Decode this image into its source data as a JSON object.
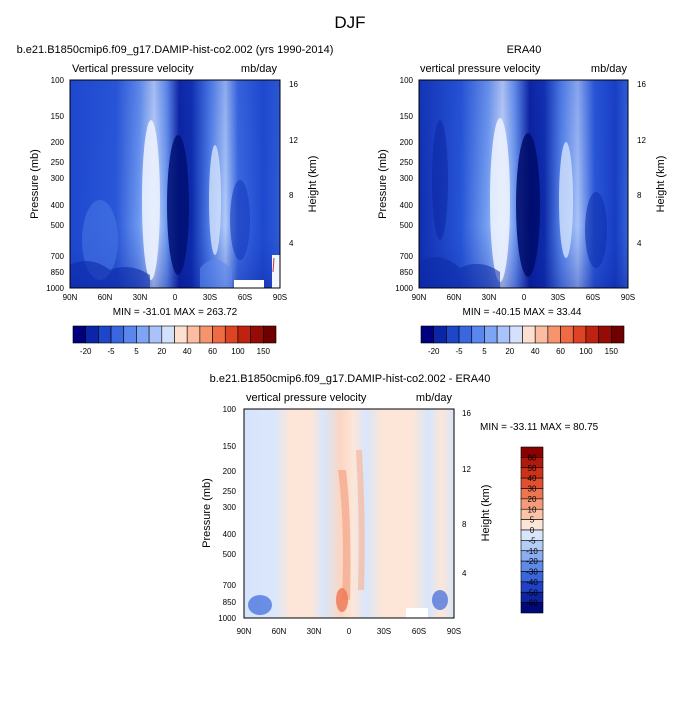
{
  "page_title": "DJF",
  "panels": [
    {
      "title": "b.e21.B1850cmip6.f09_g17.DAMIP-hist-co2.002 (yrs 1990-2014)",
      "left_label": "Vertical pressure velocity",
      "right_label": "mb/day",
      "stats": "MIN = -31.01  MAX = 263.72"
    },
    {
      "title": "ERA40",
      "left_label": "vertical pressure velocity",
      "right_label": "mb/day",
      "stats": "MIN = -40.15  MAX = 33.44"
    },
    {
      "title": "b.e21.B1850cmip6.f09_g17.DAMIP-hist-co2.002 - ERA40",
      "left_label": "vertical pressure velocity",
      "right_label": "mb/day",
      "stats": "MIN = -33.11  MAX =  80.75"
    }
  ],
  "colorbar_main": {
    "tick_labels": [
      "-20",
      "-5",
      "5",
      "20",
      "40",
      "60",
      "100",
      "150"
    ],
    "colors": [
      "#00007f",
      "#0c25a6",
      "#1e46c8",
      "#3a66e0",
      "#5a86ef",
      "#7ea4f6",
      "#a9c3fa",
      "#d3e1fd",
      "#fde0cf",
      "#fbbc9f",
      "#f6946e",
      "#ee6b43",
      "#de4424",
      "#c02211",
      "#960b06",
      "#6e0000"
    ]
  },
  "colorbar_diff": {
    "tick_labels": [
      "60",
      "50",
      "40",
      "30",
      "20",
      "10",
      "5",
      "0",
      "-5",
      "-10",
      "-20",
      "-30",
      "-40",
      "-50",
      "-60"
    ],
    "colors": [
      "#8b0000",
      "#b01a0c",
      "#cc3218",
      "#e05030",
      "#ee7552",
      "#f59b7b",
      "#fbc4a8",
      "#fde6d8",
      "#d8e6fb",
      "#b4cdf7",
      "#8aaef1",
      "#5f8be8",
      "#3a66dc",
      "#2142c4",
      "#0f22a0",
      "#00087a"
    ]
  },
  "chart_data": [
    {
      "type": "heatmap",
      "title": "b.e21.B1850cmip6.f09_g17.DAMIP-hist-co2.002 (yrs 1990-2014)",
      "variable": "Vertical pressure velocity",
      "units": "mb/day",
      "xlabel": "",
      "ylabel": "Pressure (mb)",
      "y2label": "Height (km)",
      "x_ticks": [
        "90N",
        "60N",
        "30N",
        "0",
        "30S",
        "60S",
        "90S"
      ],
      "y_ticks": [
        "100",
        "150",
        "200",
        "250",
        "300",
        "400",
        "500",
        "700",
        "850",
        "1000"
      ],
      "y2_ticks": [
        "16",
        "12",
        "8",
        "4"
      ],
      "y_scale": "log",
      "min": -31.01,
      "max": 263.72
    },
    {
      "type": "heatmap",
      "title": "ERA40",
      "variable": "vertical pressure velocity",
      "units": "mb/day",
      "xlabel": "",
      "ylabel": "Pressure (mb)",
      "y2label": "Height (km)",
      "x_ticks": [
        "90N",
        "60N",
        "30N",
        "0",
        "30S",
        "60S",
        "90S"
      ],
      "y_ticks": [
        "100",
        "150",
        "200",
        "250",
        "300",
        "400",
        "500",
        "700",
        "850",
        "1000"
      ],
      "y2_ticks": [
        "16",
        "12",
        "8",
        "4"
      ],
      "y_scale": "log",
      "min": -40.15,
      "max": 33.44
    },
    {
      "type": "heatmap",
      "title": "b.e21.B1850cmip6.f09_g17.DAMIP-hist-co2.002 - ERA40",
      "variable": "vertical pressure velocity",
      "units": "mb/day",
      "xlabel": "",
      "ylabel": "Pressure (mb)",
      "y2label": "Height (km)",
      "x_ticks": [
        "90N",
        "60N",
        "30N",
        "0",
        "30S",
        "60S",
        "90S"
      ],
      "y_ticks": [
        "100",
        "150",
        "200",
        "250",
        "300",
        "400",
        "500",
        "700",
        "850",
        "1000"
      ],
      "y2_ticks": [
        "16",
        "12",
        "8",
        "4"
      ],
      "y_scale": "log",
      "min": -33.11,
      "max": 80.75
    }
  ]
}
